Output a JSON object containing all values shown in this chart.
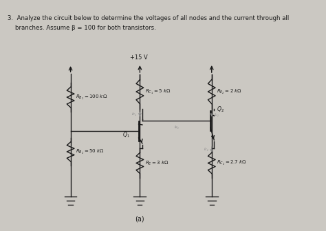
{
  "title_line1": "3.  Analyze the circuit below to determine the voltages of all nodes and the current through all",
  "title_line2": "    branches. Assume β = 100 for both transistors.",
  "label_a": "(a)",
  "vcc_label": "+15 V",
  "rc1_label": "$R_{C_1} = 5\\ k\\Omega$",
  "rc2_label": "$R_{E_2} = 2\\ k\\Omega$",
  "rb1_label": "$R_{B_1} = 100\\ k\\Omega$",
  "rb2_label": "$R_{B_2} = 50\\ k\\Omega$",
  "re_label": "$R_E = 3\\ k\\Omega$",
  "rc2b_label": "$R_{C_2} = 2.7\\ k\\Omega$",
  "q1_label": "$Q_1$",
  "q2_label": "$Q_2$",
  "ic1_label": "$I_{C_1}$",
  "ic2_label": "$I_{C_2}$",
  "ib2_label": "$I_{B_2}$",
  "ic2b_label": "$I_{C_2}$",
  "bg_color": "#cbc8c2",
  "line_color": "#1a1a1a",
  "text_color": "#1a1a1a",
  "faint_color": "#888888"
}
